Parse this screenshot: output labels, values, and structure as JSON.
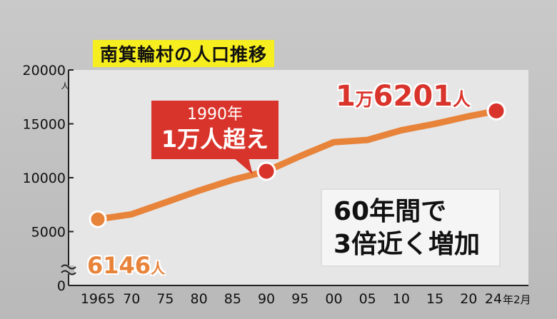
{
  "chart_data": {
    "type": "line",
    "title": "南箕輪村の人口推移",
    "ylim": [
      0,
      20000
    ],
    "yticks": [
      "20000",
      "15000",
      "10000",
      "5000",
      "0"
    ],
    "y_unit": "人",
    "x_tick_labels": [
      "1965",
      "70",
      "75",
      "80",
      "85",
      "90",
      "95",
      "00",
      "05",
      "10",
      "15",
      "20",
      "24"
    ],
    "x_last_suffix": "年2月",
    "series": [
      {
        "color": "#e8833a",
        "x": [
          1965,
          1970,
          1975,
          1980,
          1985,
          1990,
          1995,
          2000,
          2005,
          2010,
          2015,
          2020,
          2024.1
        ],
        "values": [
          6146,
          6600,
          7700,
          8800,
          9800,
          10600,
          12000,
          13300,
          13500,
          14400,
          15000,
          15700,
          16201
        ]
      }
    ],
    "annotations": {
      "point_1990": {
        "line1": "1990年",
        "line2": "1万人超え"
      },
      "end_label": {
        "num1": "1",
        "unit1": "万",
        "num2": "6201",
        "unit2": "人"
      },
      "start_label": {
        "num": "6146",
        "unit": "人"
      },
      "note": {
        "line1": "60年間で",
        "line2": "3倍近く増加"
      }
    },
    "grid": false,
    "axis_break": true
  },
  "colors": {
    "line": "#e8833a",
    "marker": "#d9342b",
    "title_bg": "#f6ee1e",
    "callout": "#d9342b"
  }
}
